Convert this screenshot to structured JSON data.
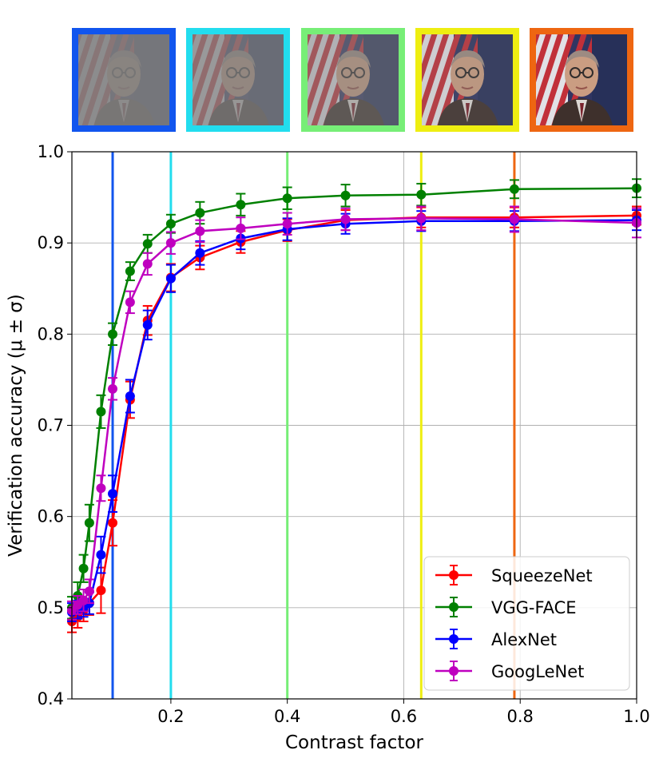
{
  "thumbnails": [
    {
      "contrast": 0.1,
      "border_color": "#1155ee",
      "name": "thumb-contrast-0.1"
    },
    {
      "contrast": 0.2,
      "border_color": "#22ddee",
      "name": "thumb-contrast-0.2"
    },
    {
      "contrast": 0.4,
      "border_color": "#77ee77",
      "name": "thumb-contrast-0.4"
    },
    {
      "contrast": 0.63,
      "border_color": "#eeee11",
      "name": "thumb-contrast-0.63"
    },
    {
      "contrast": 0.79,
      "border_color": "#ee6611",
      "name": "thumb-contrast-0.79"
    }
  ],
  "chart_data": {
    "type": "line",
    "title": "",
    "xlabel": "Contrast factor",
    "ylabel": "Verification accuracy (μ ± σ)",
    "xlim": [
      0.03,
      1.0
    ],
    "ylim": [
      0.4,
      1.0
    ],
    "xticks": [
      0.2,
      0.4,
      0.6,
      0.8,
      1.0
    ],
    "xtick_labels": [
      "0.2",
      "0.4",
      "0.6",
      "0.8",
      "1.0"
    ],
    "yticks": [
      0.4,
      0.5,
      0.6,
      0.7,
      0.8,
      0.9,
      1.0
    ],
    "ytick_labels": [
      "0.4",
      "0.5",
      "0.6",
      "0.7",
      "0.8",
      "0.9",
      "1.0"
    ],
    "grid": true,
    "legend_position": "bottom-right",
    "vertical_lines": [
      {
        "x": 0.1,
        "color": "#1155ee"
      },
      {
        "x": 0.2,
        "color": "#22ddee"
      },
      {
        "x": 0.4,
        "color": "#77ee77"
      },
      {
        "x": 0.63,
        "color": "#eeee11"
      },
      {
        "x": 0.79,
        "color": "#ee6611"
      }
    ],
    "x": [
      0.03,
      0.04,
      0.05,
      0.06,
      0.08,
      0.1,
      0.13,
      0.16,
      0.2,
      0.25,
      0.32,
      0.4,
      0.5,
      0.63,
      0.79,
      1.0
    ],
    "series": [
      {
        "name": "SqueezeNet",
        "color": "#ff0000",
        "values": [
          0.485,
          0.49,
          0.497,
          0.505,
          0.519,
          0.593,
          0.728,
          0.815,
          0.862,
          0.884,
          0.901,
          0.914,
          0.925,
          0.928,
          0.928,
          0.93
        ],
        "errors": [
          0.012,
          0.012,
          0.012,
          0.013,
          0.025,
          0.025,
          0.02,
          0.016,
          0.015,
          0.013,
          0.012,
          0.012,
          0.011,
          0.011,
          0.011,
          0.01
        ]
      },
      {
        "name": "VGG-FACE",
        "color": "#008000",
        "values": [
          0.5,
          0.513,
          0.543,
          0.593,
          0.715,
          0.8,
          0.869,
          0.899,
          0.921,
          0.933,
          0.942,
          0.949,
          0.952,
          0.953,
          0.959,
          0.96
        ],
        "errors": [
          0.012,
          0.015,
          0.015,
          0.02,
          0.018,
          0.012,
          0.01,
          0.01,
          0.01,
          0.012,
          0.012,
          0.012,
          0.012,
          0.012,
          0.01,
          0.01
        ]
      },
      {
        "name": "AlexNet",
        "color": "#0000ff",
        "values": [
          0.495,
          0.498,
          0.5,
          0.505,
          0.558,
          0.625,
          0.732,
          0.81,
          0.861,
          0.889,
          0.905,
          0.915,
          0.921,
          0.924,
          0.924,
          0.925
        ],
        "errors": [
          0.01,
          0.01,
          0.01,
          0.012,
          0.02,
          0.02,
          0.018,
          0.016,
          0.015,
          0.013,
          0.012,
          0.012,
          0.011,
          0.011,
          0.011,
          0.011
        ]
      },
      {
        "name": "GoogLeNet",
        "color": "#bf00bf",
        "values": [
          0.497,
          0.503,
          0.508,
          0.518,
          0.631,
          0.74,
          0.835,
          0.877,
          0.9,
          0.913,
          0.916,
          0.921,
          0.926,
          0.927,
          0.926,
          0.922
        ],
        "errors": [
          0.01,
          0.01,
          0.012,
          0.013,
          0.014,
          0.012,
          0.012,
          0.012,
          0.012,
          0.012,
          0.012,
          0.012,
          0.012,
          0.013,
          0.014,
          0.016
        ]
      }
    ]
  }
}
